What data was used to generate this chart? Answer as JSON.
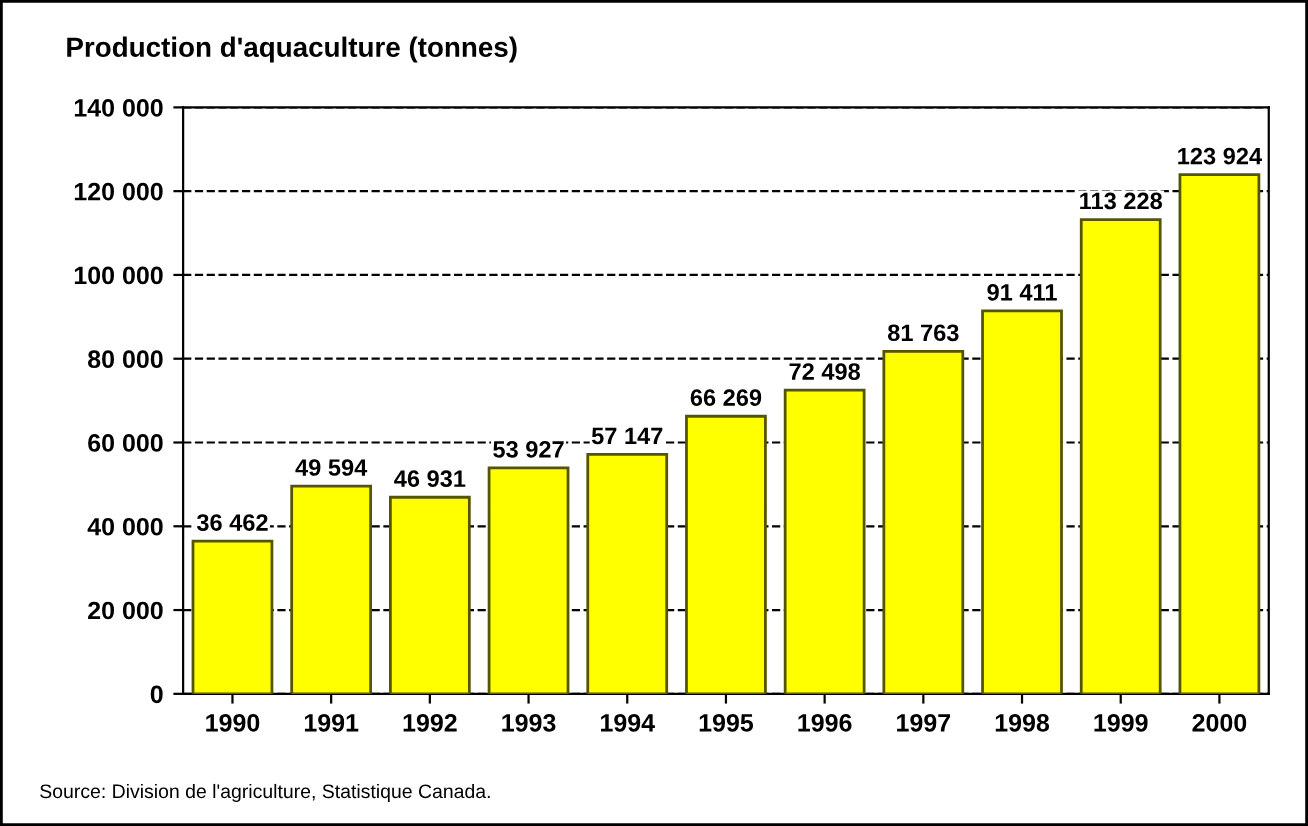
{
  "chart_data": {
    "type": "bar",
    "title": "Production d'aquaculture (tonnes)",
    "categories": [
      "1990",
      "1991",
      "1992",
      "1993",
      "1994",
      "1995",
      "1996",
      "1997",
      "1998",
      "1999",
      "2000"
    ],
    "values": [
      36462,
      49594,
      46931,
      53927,
      57147,
      66269,
      72498,
      81763,
      91411,
      113228,
      123924
    ],
    "value_labels": [
      "36 462",
      "49 594",
      "46 931",
      "53 927",
      "57 147",
      "66 269",
      "72 498",
      "81 763",
      "91 411",
      "113 228",
      "123 924"
    ],
    "color": "#ffff00",
    "ylim": [
      0,
      140000
    ],
    "yticks": [
      0,
      {
        "value": 20000,
        "label": "20 000"
      },
      {
        "value": 40000,
        "label": "40 000"
      },
      {
        "value": 60000,
        "label": "60 000"
      },
      {
        "value": 80000,
        "label": "80 000"
      },
      {
        "value": 100000,
        "label": "100 000"
      },
      {
        "value": 120000,
        "label": "120 000"
      },
      {
        "value": 140000,
        "label": "140 000"
      }
    ],
    "grid": "y",
    "line_style": "dashed",
    "annotations": [
      "Source: Division de l'agriculture, Statistique Canada."
    ]
  }
}
